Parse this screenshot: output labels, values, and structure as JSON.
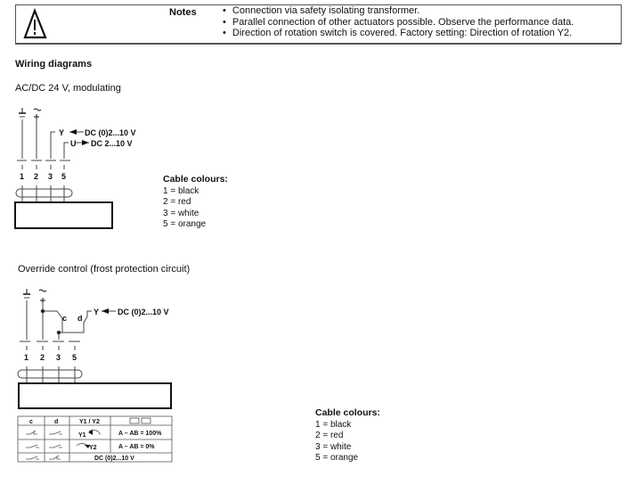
{
  "notes": {
    "icon": "warning-triangle-icon",
    "label": "Notes",
    "items": [
      "Connection via safety isolating transformer.",
      "Parallel connection of other actuators possible. Observe the performance data.",
      "Direction of rotation switch is covered. Factory setting: Direction of rotation Y2."
    ]
  },
  "heading": "Wiring diagrams",
  "diagram1": {
    "title": "AC/DC 24 V, modulating",
    "supply_symbols": [
      "⊥ −",
      "~ +"
    ],
    "signal_y": "Y",
    "signal_y_value": "DC (0)2...10 V",
    "signal_u": "U",
    "signal_u_value": "DC 2...10 V",
    "terminals": [
      "1",
      "2",
      "3",
      "5"
    ],
    "cable_title": "Cable colours:",
    "cable_colours": [
      "1 = black",
      "2 = red",
      "3 = white",
      "5 = orange"
    ]
  },
  "diagram2": {
    "title": "Override control (frost protection circuit)",
    "signal_y": "Y",
    "signal_y_value": "DC (0)2...10 V",
    "switch_c": "c",
    "switch_d": "d",
    "terminals": [
      "1",
      "2",
      "3",
      "5"
    ],
    "table": {
      "headers": [
        "c",
        "d",
        "Y1 / Y2"
      ],
      "rows": [
        {
          "rotation": "Y1",
          "result": "A – AB = 100%"
        },
        {
          "rotation": "Y2",
          "result": "A – AB = 0%"
        },
        {
          "result": "DC (0)2...10 V"
        }
      ]
    },
    "cable_title": "Cable colours:",
    "cable_colours": [
      "1 = black",
      "2 = red",
      "3 = white",
      "5 = orange"
    ]
  }
}
